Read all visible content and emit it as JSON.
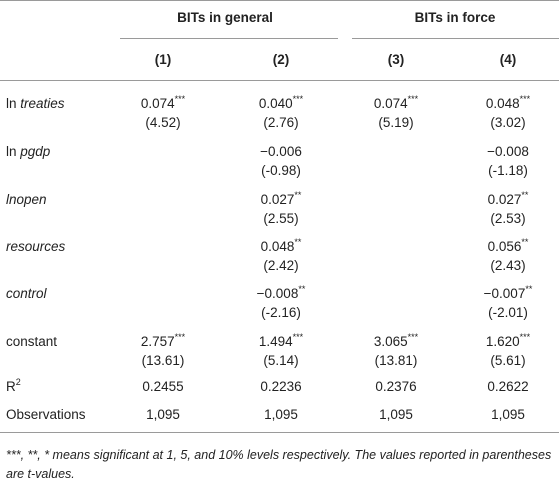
{
  "groups": {
    "general": "BITs in general",
    "force": "BITs in force"
  },
  "columns": [
    "(1)",
    "(2)",
    "(3)",
    "(4)"
  ],
  "rows": [
    {
      "prefix": "ln ",
      "var": "treaties",
      "coef": [
        "0.074",
        "0.040",
        "0.074",
        "0.048"
      ],
      "stars": [
        "***",
        "***",
        "***",
        "***"
      ],
      "t": [
        "(4.52)",
        "(2.76)",
        "(5.19)",
        "(3.02)"
      ]
    },
    {
      "prefix": "ln ",
      "var": "pgdp",
      "coef": [
        "",
        "−0.006",
        "",
        "−0.008"
      ],
      "stars": [
        "",
        "",
        "",
        ""
      ],
      "t": [
        "",
        "(-0.98)",
        "",
        "(-1.18)"
      ]
    },
    {
      "prefix": "",
      "var": "lnopen",
      "coef": [
        "",
        "0.027",
        "",
        "0.027"
      ],
      "stars": [
        "",
        "**",
        "",
        "**"
      ],
      "t": [
        "",
        "(2.55)",
        "",
        "(2.53)"
      ]
    },
    {
      "prefix": "",
      "var": "resources",
      "coef": [
        "",
        "0.048",
        "",
        "0.056"
      ],
      "stars": [
        "",
        "**",
        "",
        "**"
      ],
      "t": [
        "",
        "(2.42)",
        "",
        "(2.43)"
      ]
    },
    {
      "prefix": "",
      "var": "control",
      "coef": [
        "",
        "−0.008",
        "",
        "−0.007"
      ],
      "stars": [
        "",
        "**",
        "",
        "**"
      ],
      "t": [
        "",
        "(-2.16)",
        "",
        "(-2.01)"
      ]
    },
    {
      "prefix": "constant",
      "var": "",
      "coef": [
        "2.757",
        "1.494",
        "3.065",
        "1.620"
      ],
      "stars": [
        "***",
        "***",
        "***",
        "***"
      ],
      "t": [
        "(13.61)",
        "(5.14)",
        "(13.81)",
        "(5.61)"
      ]
    }
  ],
  "r2": {
    "label": "R",
    "sup": "2",
    "values": [
      "0.2455",
      "0.2236",
      "0.2376",
      "0.2622"
    ]
  },
  "obs": {
    "label": "Observations",
    "values": [
      "1,095",
      "1,095",
      "1,095",
      "1,095"
    ]
  },
  "note": "***, **, * means significant at 1, 5, and 10% levels respectively. The values reported in parentheses are t-values."
}
